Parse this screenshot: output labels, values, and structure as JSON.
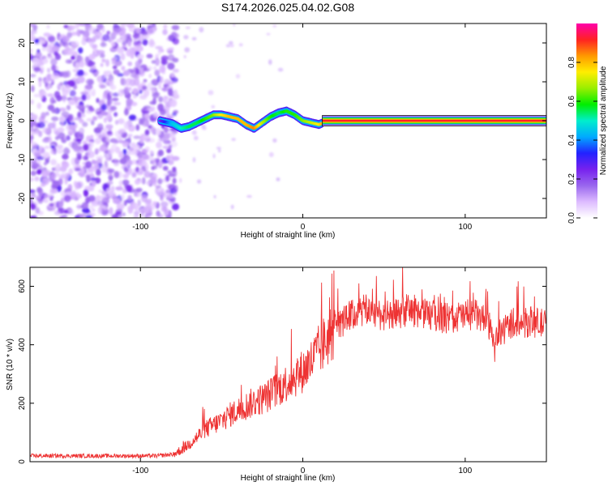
{
  "figure_title": "S174.2026.025.04.02.G08",
  "colors": {
    "snr_line": "#ee3333",
    "axis": "#000000",
    "colormap": [
      "#ffffff",
      "#ddbbff",
      "#9966ee",
      "#7722ee",
      "#2222ff",
      "#00aaff",
      "#00eecc",
      "#00ee00",
      "#99ee00",
      "#ffee00",
      "#ff9900",
      "#ff2222",
      "#ff00aa"
    ]
  },
  "chart_data": [
    {
      "type": "heatmap",
      "title": "S174.2026.025.04.02.G08",
      "xlabel": "Height of straight line (km)",
      "ylabel": "Frequency (Hz)",
      "xlim": [
        -168,
        150
      ],
      "ylim": [
        -25,
        25
      ],
      "xticks": [
        -100,
        0,
        100
      ],
      "xtick_labels": [
        "-100",
        "0",
        "100"
      ],
      "yticks": [
        20,
        10,
        0,
        -10,
        -20
      ],
      "ytick_labels": [
        "20",
        "10",
        "0",
        "-10",
        "-20"
      ],
      "noise_region_x": [
        -168,
        -82
      ],
      "signal_track": {
        "x": [
          -88,
          -80,
          -75,
          -70,
          -65,
          -60,
          -55,
          -50,
          -45,
          -40,
          -35,
          -30,
          -25,
          -20,
          -15,
          -10,
          -5,
          0,
          5,
          10,
          15,
          150
        ],
        "freq": [
          0,
          -0.8,
          -2,
          -1.5,
          -0.5,
          0.5,
          1.5,
          1.5,
          1,
          0.5,
          -1,
          -2,
          -0.5,
          1,
          2,
          2.5,
          1.5,
          0,
          -0.5,
          -1,
          0,
          0
        ],
        "amplitude": [
          0.25,
          0.45,
          0.5,
          0.55,
          0.55,
          0.6,
          0.65,
          0.75,
          0.8,
          0.8,
          0.8,
          0.85,
          0.7,
          0.6,
          0.55,
          0.6,
          0.6,
          0.65,
          0.7,
          0.75,
          0.9,
          0.9
        ]
      },
      "colorbar": {
        "label": "Normalized spectral amplitude",
        "range": [
          0,
          1
        ],
        "ticks": [
          0.0,
          0.2,
          0.4,
          0.6,
          0.8
        ],
        "tick_labels": [
          "0.0",
          "0.2",
          "0.4",
          "0.6",
          "0.8"
        ]
      }
    },
    {
      "type": "line",
      "title": "",
      "xlabel": "Height of straight line (km)",
      "ylabel": "SNR (10 * v/v)",
      "xlim": [
        -168,
        150
      ],
      "ylim": [
        0,
        665
      ],
      "xticks": [
        -100,
        0,
        100
      ],
      "xtick_labels": [
        "-100",
        "0",
        "100"
      ],
      "yticks": [
        0,
        200,
        400,
        600
      ],
      "ytick_labels": [
        "0",
        "200",
        "400",
        "600"
      ],
      "series": [
        {
          "name": "SNR",
          "x": [
            -168,
            -140,
            -120,
            -100,
            -90,
            -80,
            -75,
            -70,
            -65,
            -60,
            -55,
            -50,
            -45,
            -40,
            -35,
            -30,
            -25,
            -20,
            -15,
            -10,
            -5,
            0,
            5,
            10,
            15,
            20,
            25,
            30,
            35,
            40,
            45,
            50,
            55,
            60,
            65,
            70,
            75,
            80,
            85,
            90,
            95,
            100,
            105,
            110,
            115,
            118,
            120,
            125,
            130,
            135,
            140,
            145,
            150
          ],
          "y": [
            20,
            20,
            20,
            20,
            20,
            25,
            40,
            60,
            85,
            110,
            125,
            140,
            160,
            175,
            190,
            205,
            215,
            230,
            250,
            270,
            290,
            310,
            340,
            380,
            420,
            460,
            480,
            500,
            510,
            520,
            510,
            500,
            495,
            510,
            520,
            515,
            505,
            500,
            495,
            490,
            495,
            500,
            505,
            490,
            460,
            380,
            420,
            460,
            480,
            470,
            480,
            475,
            470
          ]
        }
      ]
    }
  ]
}
